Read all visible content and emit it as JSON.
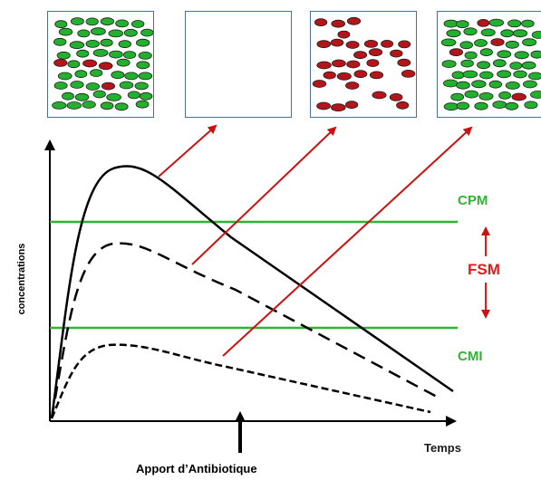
{
  "labels": {
    "cpm": "CPM",
    "cmi": "CMI",
    "fsm": "FSM",
    "y_axis": "concentrations",
    "x_axis": "Temps",
    "apport": "Apport d’Antibiotique"
  },
  "colors": {
    "threshold_line": "#2fb52f",
    "arrow": "#cc1111",
    "fsm": "#e11b1b",
    "bacteria_green": "#22b02e",
    "bacteria_red": "#b3151a",
    "panel_border": "#4a6f9c"
  },
  "panels": [
    {
      "name": "panel-mixed",
      "population": "mostly green, few red"
    },
    {
      "name": "panel-empty",
      "population": "empty"
    },
    {
      "name": "panel-resistant",
      "population": "red"
    },
    {
      "name": "panel-regrowth",
      "population": "mostly green, few red"
    }
  ],
  "curves": [
    {
      "name": "high-dose-curve",
      "style": "solid"
    },
    {
      "name": "medium-dose-curve",
      "style": "dashed"
    },
    {
      "name": "low-dose-curve",
      "style": "dotted"
    }
  ]
}
